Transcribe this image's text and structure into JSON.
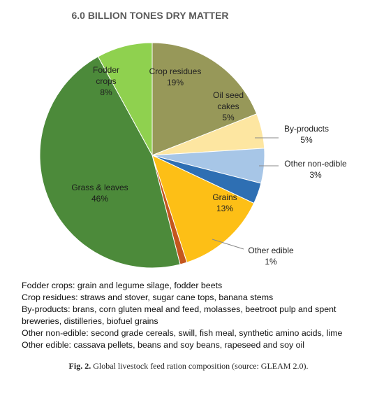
{
  "chart_data": {
    "type": "pie",
    "title": "6.0 BILLION TONES DRY MATTER",
    "start_angle_deg": 90,
    "direction": "clockwise",
    "slices": [
      {
        "label": "Crop residues",
        "value": 19,
        "value_label": "19%",
        "color": "#979859"
      },
      {
        "label": "Oil seed cakes",
        "value": 5,
        "value_label": "5%",
        "color": "#fde6a1"
      },
      {
        "label": "By-products",
        "value": 5,
        "value_label": "5%",
        "color": "#a7c6e7"
      },
      {
        "label": "Other non-edible",
        "value": 3,
        "value_label": "3%",
        "color": "#2e6fb3"
      },
      {
        "label": "Grains",
        "value": 13,
        "value_label": "13%",
        "color": "#fdbf16"
      },
      {
        "label": "Other edible",
        "value": 1,
        "value_label": "1%",
        "color": "#c4561e"
      },
      {
        "label": "Grass & leaves",
        "value": 46,
        "value_label": "46%",
        "color": "#4c8a3a"
      },
      {
        "label": "Fodder crops",
        "value": 8,
        "value_label": "8%",
        "color": "#8fd14f"
      }
    ]
  },
  "notes": [
    "Fodder crops: grain and legume silage, fodder beets",
    "Crop residues: straws and stover, sugar cane tops, banana stems",
    "By-products: brans, corn gluten meal and feed, molasses, beetroot pulp and spent",
    "breweries, distilleries, biofuel grains",
    "Other non-edible: second grade cereals, swill, fish meal, synthetic amino acids, lime",
    "Other edible: cassava pellets, beans and soy beans, rapeseed and soy oil"
  ],
  "caption": {
    "prefix": "Fig. 2.",
    "text": "Global livestock feed ration composition (source: GLEAM 2.0)."
  }
}
